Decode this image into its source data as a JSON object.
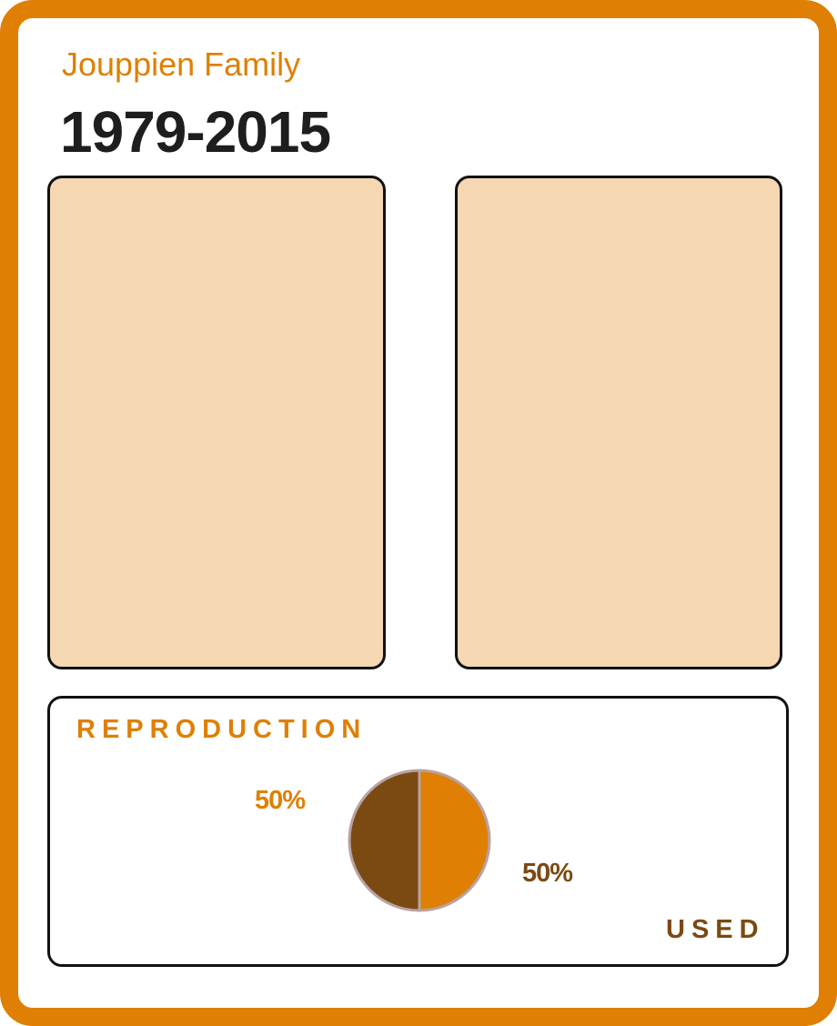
{
  "header": {
    "subtitle": "Jouppien Family",
    "title": "1979-2015"
  },
  "chart_data": {
    "type": "pie",
    "categories": [
      "REPRODUCTION",
      "USED"
    ],
    "values": [
      50,
      50
    ],
    "labels": [
      "50%",
      "50%"
    ],
    "colors": [
      "#df7f04",
      "#7b4a12"
    ],
    "outline_color": "#b8a3a3"
  }
}
